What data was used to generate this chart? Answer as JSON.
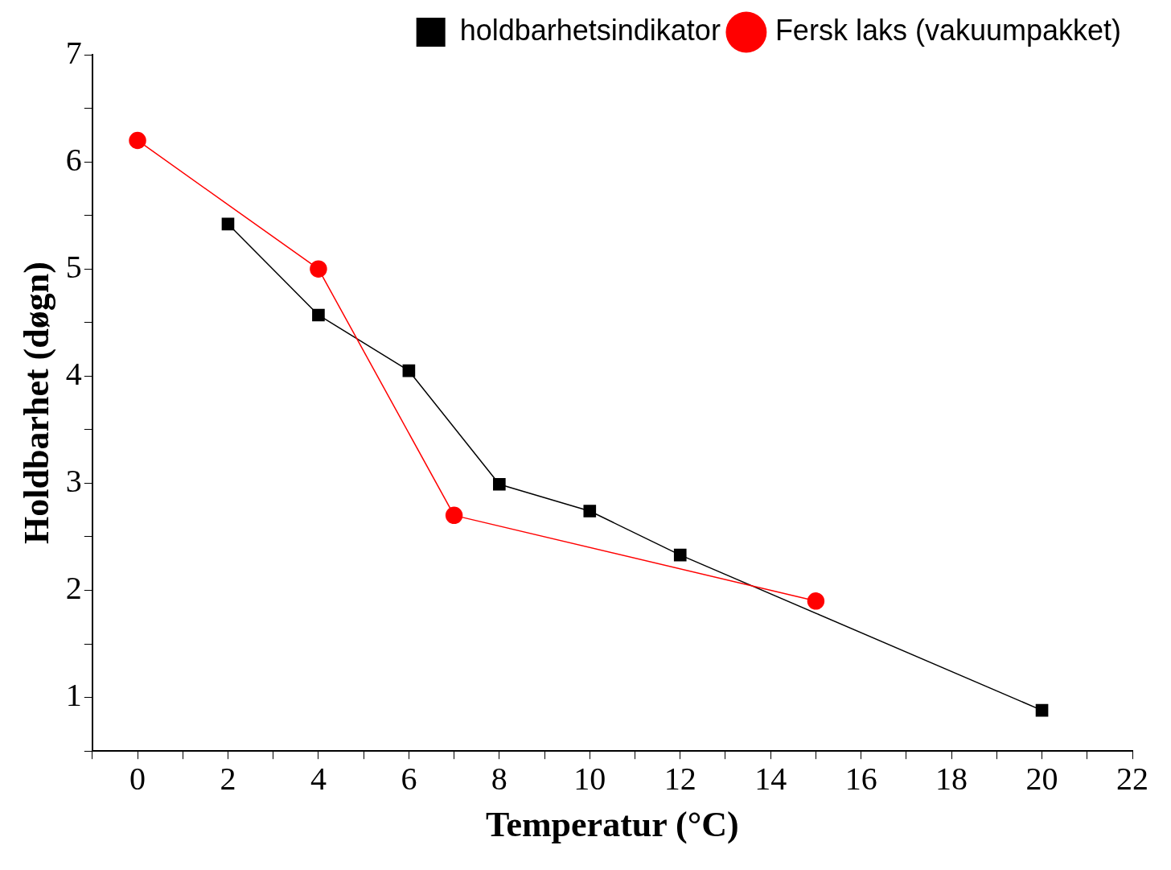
{
  "chart_data": {
    "type": "line",
    "xlabel": "Temperatur (°C)",
    "ylabel": "Holdbarhet (døgn)",
    "series": [
      {
        "name": "holdbarhetsindikator",
        "color": "#000000",
        "marker": "square",
        "x": [
          2,
          4,
          6,
          8,
          10,
          12,
          20
        ],
        "values": [
          5.42,
          4.57,
          4.05,
          2.99,
          2.74,
          2.33,
          0.88
        ]
      },
      {
        "name": "Fersk laks (vakuumpakket)",
        "color": "#ff0000",
        "marker": "circle",
        "x": [
          0,
          4,
          7,
          15
        ],
        "values": [
          6.2,
          5.0,
          2.7,
          1.9
        ]
      }
    ],
    "xlim": [
      -1,
      22
    ],
    "xticks": [
      {
        "value": -1,
        "label": null
      },
      0,
      {
        "value": 1,
        "label": null
      },
      2,
      {
        "value": 3,
        "label": null
      },
      4,
      {
        "value": 5,
        "label": null
      },
      6,
      {
        "value": 7,
        "label": null
      },
      8,
      {
        "value": 9,
        "label": null
      },
      10,
      {
        "value": 11,
        "label": null
      },
      12,
      {
        "value": 13,
        "label": null
      },
      14,
      {
        "value": 15,
        "label": null
      },
      16,
      {
        "value": 17,
        "label": null
      },
      18,
      {
        "value": 19,
        "label": null
      },
      20,
      {
        "value": 21,
        "label": null
      },
      22
    ],
    "ylim": [
      0.5,
      7
    ],
    "yticks": [
      {
        "value": 0.5,
        "label": null
      },
      1,
      {
        "value": 1.5,
        "label": null
      },
      2,
      {
        "value": 2.5,
        "label": null
      },
      3,
      {
        "value": 3.5,
        "label": null
      },
      4,
      {
        "value": 4.5,
        "label": null
      },
      5,
      {
        "value": 5.5,
        "label": null
      },
      6,
      {
        "value": 6.5,
        "label": null
      },
      7
    ],
    "grid": false,
    "legend": "top right",
    "line_style": "solid"
  }
}
